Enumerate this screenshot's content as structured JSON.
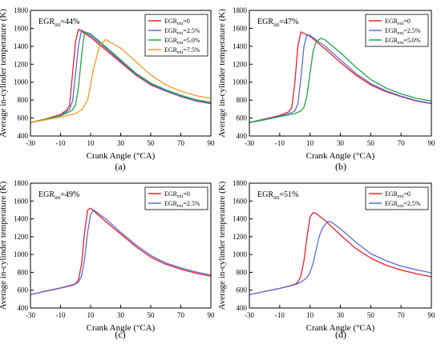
{
  "figure": {
    "ylabel": "Average in-cylinder temperature (K)",
    "xlabel": "Crank Angle (°CA)"
  },
  "chart_data": [
    {
      "type": "line",
      "panel_label": "(a)",
      "annotation": {
        "main": "EGR",
        "sub": "int",
        "tail": "=44%"
      },
      "xlabel": "Crank Angle (°CA)",
      "ylabel": "Average in-cylinder temperature (K)",
      "xlim": [
        -30,
        90
      ],
      "ylim": [
        400,
        1800
      ],
      "xticks": [
        -30,
        -10,
        10,
        30,
        50,
        70,
        90
      ],
      "yticks": [
        400,
        600,
        800,
        1000,
        1200,
        1400,
        1600,
        1800
      ],
      "legend_position": "top-right",
      "series": [
        {
          "name": "EGR",
          "name_sub": "ext",
          "name_tail": "=0",
          "color": "#e8202a",
          "x": [
            -30,
            -20,
            -10,
            -6,
            -4,
            -2,
            0,
            2,
            10,
            20,
            30,
            40,
            50,
            60,
            70,
            80,
            90
          ],
          "y": [
            550,
            590,
            640,
            690,
            740,
            1100,
            1460,
            1590,
            1500,
            1360,
            1220,
            1080,
            970,
            900,
            840,
            790,
            760
          ]
        },
        {
          "name": "EGR",
          "name_sub": "ext",
          "name_tail": "=2.5%",
          "color": "#5b6bd6",
          "x": [
            -30,
            -20,
            -10,
            -6,
            -4,
            -2,
            0,
            2,
            4,
            10,
            20,
            30,
            40,
            50,
            60,
            70,
            80,
            90
          ],
          "y": [
            550,
            585,
            630,
            670,
            700,
            790,
            1100,
            1420,
            1580,
            1520,
            1380,
            1235,
            1090,
            980,
            905,
            845,
            795,
            765
          ]
        },
        {
          "name": "EGR",
          "name_sub": "ext",
          "name_tail": "=5.0%",
          "color": "#1fa64a",
          "x": [
            -30,
            -20,
            -10,
            -6,
            -2,
            0,
            2,
            4,
            6,
            10,
            20,
            30,
            40,
            50,
            60,
            70,
            80,
            90
          ],
          "y": [
            550,
            585,
            625,
            655,
            690,
            750,
            950,
            1300,
            1560,
            1540,
            1395,
            1250,
            1100,
            990,
            915,
            855,
            805,
            775
          ]
        },
        {
          "name": "EGR",
          "name_sub": "ext",
          "name_tail": "=7.5%",
          "color": "#f39c1f",
          "x": [
            -30,
            -20,
            -10,
            0,
            4,
            8,
            12,
            16,
            20,
            30,
            40,
            50,
            60,
            70,
            80,
            90
          ],
          "y": [
            550,
            580,
            610,
            650,
            690,
            800,
            1150,
            1410,
            1475,
            1380,
            1230,
            1080,
            970,
            900,
            850,
            820
          ]
        }
      ]
    },
    {
      "type": "line",
      "panel_label": "(b)",
      "annotation": {
        "main": "EGR",
        "sub": "int",
        "tail": "=47%"
      },
      "xlabel": "Crank Angle (°CA)",
      "ylabel": "Average in-cylinder temperature (K)",
      "xlim": [
        -30,
        90
      ],
      "ylim": [
        400,
        1800
      ],
      "xticks": [
        -30,
        -10,
        10,
        30,
        50,
        70,
        90
      ],
      "yticks": [
        400,
        600,
        800,
        1000,
        1200,
        1400,
        1600,
        1800
      ],
      "legend_position": "top-right",
      "series": [
        {
          "name": "EGR",
          "name_sub": "ext",
          "name_tail": "=0",
          "color": "#e8202a",
          "x": [
            -30,
            -20,
            -10,
            -4,
            -2,
            0,
            2,
            4,
            10,
            20,
            30,
            40,
            50,
            60,
            70,
            80,
            90
          ],
          "y": [
            550,
            590,
            630,
            670,
            720,
            1000,
            1400,
            1560,
            1510,
            1370,
            1220,
            1080,
            970,
            895,
            840,
            790,
            760
          ]
        },
        {
          "name": "EGR",
          "name_sub": "ext",
          "name_tail": "=2.5%",
          "color": "#5b6bd6",
          "x": [
            -30,
            -20,
            -10,
            -2,
            0,
            2,
            4,
            6,
            8,
            10,
            20,
            30,
            40,
            50,
            60,
            70,
            80,
            90
          ],
          "y": [
            550,
            585,
            620,
            660,
            680,
            760,
            1050,
            1400,
            1530,
            1520,
            1400,
            1250,
            1100,
            985,
            905,
            845,
            795,
            765
          ]
        },
        {
          "name": "EGR",
          "name_sub": "ext",
          "name_tail": "=5.0%",
          "color": "#1fa64a",
          "x": [
            -30,
            -20,
            -10,
            0,
            4,
            6,
            8,
            10,
            12,
            14,
            17,
            20,
            30,
            40,
            50,
            60,
            70,
            80,
            90
          ],
          "y": [
            550,
            580,
            615,
            650,
            680,
            720,
            850,
            1100,
            1340,
            1450,
            1490,
            1470,
            1330,
            1170,
            1030,
            935,
            870,
            820,
            790
          ]
        }
      ]
    },
    {
      "type": "line",
      "panel_label": "(c)",
      "annotation": {
        "main": "EGR",
        "sub": "int",
        "tail": "=49%"
      },
      "xlabel": "Crank Angle (°CA)",
      "ylabel": "Average in-cylinder temperature (K)",
      "xlim": [
        -30,
        90
      ],
      "ylim": [
        400,
        1800
      ],
      "xticks": [
        -30,
        -10,
        10,
        30,
        50,
        70,
        90
      ],
      "yticks": [
        400,
        600,
        800,
        1000,
        1200,
        1400,
        1600,
        1800
      ],
      "legend_position": "top-right",
      "series": [
        {
          "name": "EGR",
          "name_sub": "ext",
          "name_tail": "=0",
          "color": "#e8202a",
          "x": [
            -30,
            -20,
            -10,
            -2,
            0,
            2,
            4,
            6,
            8,
            10,
            20,
            30,
            40,
            50,
            60,
            70,
            80,
            90
          ],
          "y": [
            550,
            590,
            625,
            660,
            675,
            720,
            900,
            1250,
            1500,
            1520,
            1370,
            1230,
            1090,
            970,
            890,
            835,
            790,
            755
          ]
        },
        {
          "name": "EGR",
          "name_sub": "ext",
          "name_tail": "=2.5%",
          "color": "#5b6bd6",
          "x": [
            -30,
            -20,
            -10,
            -2,
            0,
            2,
            4,
            6,
            8,
            10,
            12,
            20,
            30,
            40,
            50,
            60,
            70,
            80,
            90
          ],
          "y": [
            550,
            588,
            622,
            655,
            670,
            690,
            760,
            950,
            1250,
            1450,
            1500,
            1400,
            1250,
            1110,
            990,
            905,
            850,
            805,
            770
          ]
        }
      ]
    },
    {
      "type": "line",
      "panel_label": "(d)",
      "annotation": {
        "main": "EGR",
        "sub": "int",
        "tail": "=51%"
      },
      "xlabel": "Crank Angle (°CA)",
      "ylabel": "Average in-cylinder temperature (K)",
      "xlim": [
        -30,
        90
      ],
      "ylim": [
        400,
        1800
      ],
      "xticks": [
        -30,
        -10,
        10,
        30,
        50,
        70,
        90
      ],
      "yticks": [
        400,
        600,
        800,
        1000,
        1200,
        1400,
        1600,
        1800
      ],
      "legend_position": "top-right",
      "series": [
        {
          "name": "EGR",
          "name_sub": "ext",
          "name_tail": "=0",
          "color": "#e8202a",
          "x": [
            -30,
            -20,
            -10,
            0,
            2,
            4,
            6,
            8,
            10,
            12,
            14,
            20,
            30,
            40,
            50,
            60,
            70,
            80,
            90
          ],
          "y": [
            550,
            585,
            620,
            665,
            690,
            760,
            930,
            1200,
            1420,
            1470,
            1460,
            1380,
            1220,
            1070,
            960,
            880,
            825,
            785,
            750
          ]
        },
        {
          "name": "EGR",
          "name_sub": "ext",
          "name_tail": "=2.5%",
          "color": "#5b6bd6",
          "x": [
            -30,
            -20,
            -10,
            0,
            4,
            8,
            10,
            12,
            14,
            16,
            18,
            20,
            22,
            24,
            30,
            40,
            50,
            60,
            70,
            80,
            90
          ],
          "y": [
            550,
            585,
            620,
            660,
            690,
            740,
            800,
            900,
            1050,
            1200,
            1290,
            1340,
            1370,
            1365,
            1290,
            1140,
            1010,
            930,
            870,
            830,
            795
          ]
        }
      ]
    }
  ]
}
